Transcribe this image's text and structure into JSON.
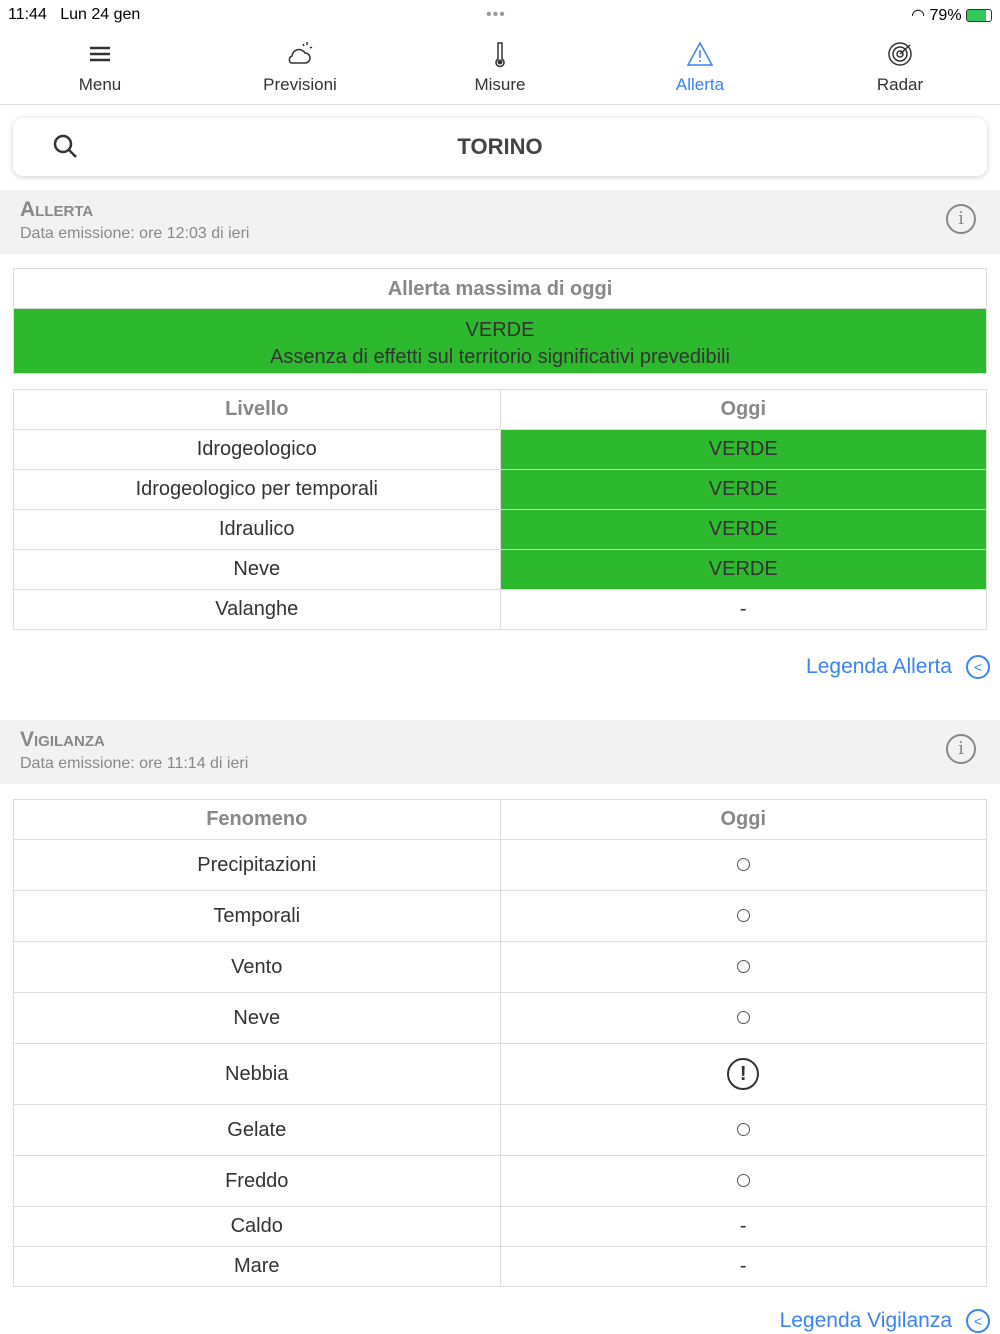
{
  "status": {
    "time": "11:44",
    "date": "Lun 24 gen",
    "battery": "79%"
  },
  "nav": [
    {
      "label": "Menu",
      "icon": "menu-icon"
    },
    {
      "label": "Previsioni",
      "icon": "cloud-sun-icon"
    },
    {
      "label": "Misure",
      "icon": "thermometer-icon"
    },
    {
      "label": "Allerta",
      "icon": "warning-icon",
      "active": true
    },
    {
      "label": "Radar",
      "icon": "radar-icon"
    }
  ],
  "search": {
    "city": "TORINO"
  },
  "allerta": {
    "title": "Allerta",
    "sub": "Data emissione: ore 12:03 di ieri",
    "max_title": "Allerta massima di oggi",
    "max_level": "VERDE",
    "max_desc": "Assenza di effetti sul territorio significativi prevedibili",
    "headers": [
      "Livello",
      "Oggi"
    ],
    "rows": [
      [
        "Idrogeologico",
        "VERDE"
      ],
      [
        "Idrogeologico per temporali",
        "VERDE"
      ],
      [
        "Idraulico",
        "VERDE"
      ],
      [
        "Neve",
        "VERDE"
      ],
      [
        "Valanghe",
        "-"
      ]
    ],
    "legend": "Legenda Allerta"
  },
  "vigilanza": {
    "title": "Vigilanza",
    "sub": "Data emissione: ore 11:14 di ieri",
    "headers": [
      "Fenomeno",
      "Oggi"
    ],
    "rows": [
      [
        "Precipitazioni",
        "circle"
      ],
      [
        "Temporali",
        "circle"
      ],
      [
        "Vento",
        "circle"
      ],
      [
        "Neve",
        "circle"
      ],
      [
        "Nebbia",
        "warning"
      ],
      [
        "Gelate",
        "circle"
      ],
      [
        "Freddo",
        "circle"
      ],
      [
        "Caldo",
        "-"
      ],
      [
        "Mare",
        "-"
      ]
    ],
    "legend": "Legenda Vigilanza"
  },
  "colors": {
    "green": "#2db92d",
    "accent": "#3b82f6"
  }
}
